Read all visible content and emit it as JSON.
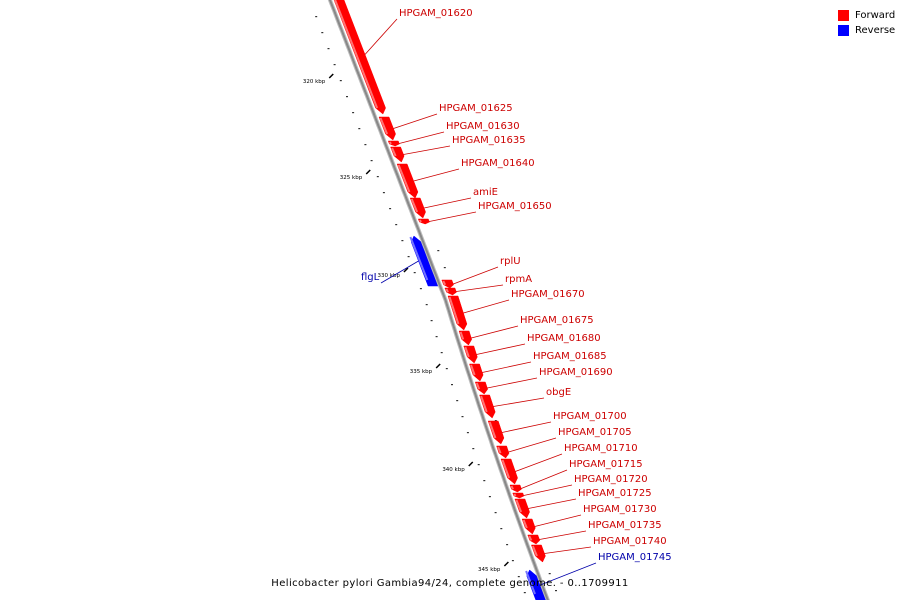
{
  "caption": "Helicobacter pylori Gambia94/24, complete genome. - 0..1709911",
  "legend": [
    {
      "label": "Forward",
      "color": "#ff0000"
    },
    {
      "label": "Reverse",
      "color": "#0000ff"
    }
  ],
  "colors": {
    "forward": "#ff0000",
    "forward_label": "#cc0000",
    "reverse": "#0000ff",
    "reverse_label": "#0000aa",
    "backbone": "#888888"
  },
  "ticks": [
    "320 kbp",
    "325 kbp",
    "330 kbp",
    "335 kbp",
    "340 kbp",
    "345 kbp"
  ],
  "genes": [
    {
      "label": "HPGAM_01620",
      "strand": "forward"
    },
    {
      "label": "HPGAM_01625",
      "strand": "forward"
    },
    {
      "label": "HPGAM_01630",
      "strand": "forward"
    },
    {
      "label": "HPGAM_01635",
      "strand": "forward"
    },
    {
      "label": "HPGAM_01640",
      "strand": "forward"
    },
    {
      "label": "amiE",
      "strand": "forward"
    },
    {
      "label": "HPGAM_01650",
      "strand": "forward"
    },
    {
      "label": "flgL",
      "strand": "reverse"
    },
    {
      "label": "rplU",
      "strand": "forward"
    },
    {
      "label": "rpmA",
      "strand": "forward"
    },
    {
      "label": "HPGAM_01670",
      "strand": "forward"
    },
    {
      "label": "HPGAM_01675",
      "strand": "forward"
    },
    {
      "label": "HPGAM_01680",
      "strand": "forward"
    },
    {
      "label": "HPGAM_01685",
      "strand": "forward"
    },
    {
      "label": "HPGAM_01690",
      "strand": "forward"
    },
    {
      "label": "obgE",
      "strand": "forward"
    },
    {
      "label": "HPGAM_01700",
      "strand": "forward"
    },
    {
      "label": "HPGAM_01705",
      "strand": "forward"
    },
    {
      "label": "HPGAM_01710",
      "strand": "forward"
    },
    {
      "label": "HPGAM_01715",
      "strand": "forward"
    },
    {
      "label": "HPGAM_01720",
      "strand": "forward"
    },
    {
      "label": "HPGAM_01725",
      "strand": "forward"
    },
    {
      "label": "HPGAM_01730",
      "strand": "forward"
    },
    {
      "label": "HPGAM_01735",
      "strand": "forward"
    },
    {
      "label": "HPGAM_01740",
      "strand": "forward"
    },
    {
      "label": "HPGAM_01745",
      "strand": "reverse"
    }
  ]
}
